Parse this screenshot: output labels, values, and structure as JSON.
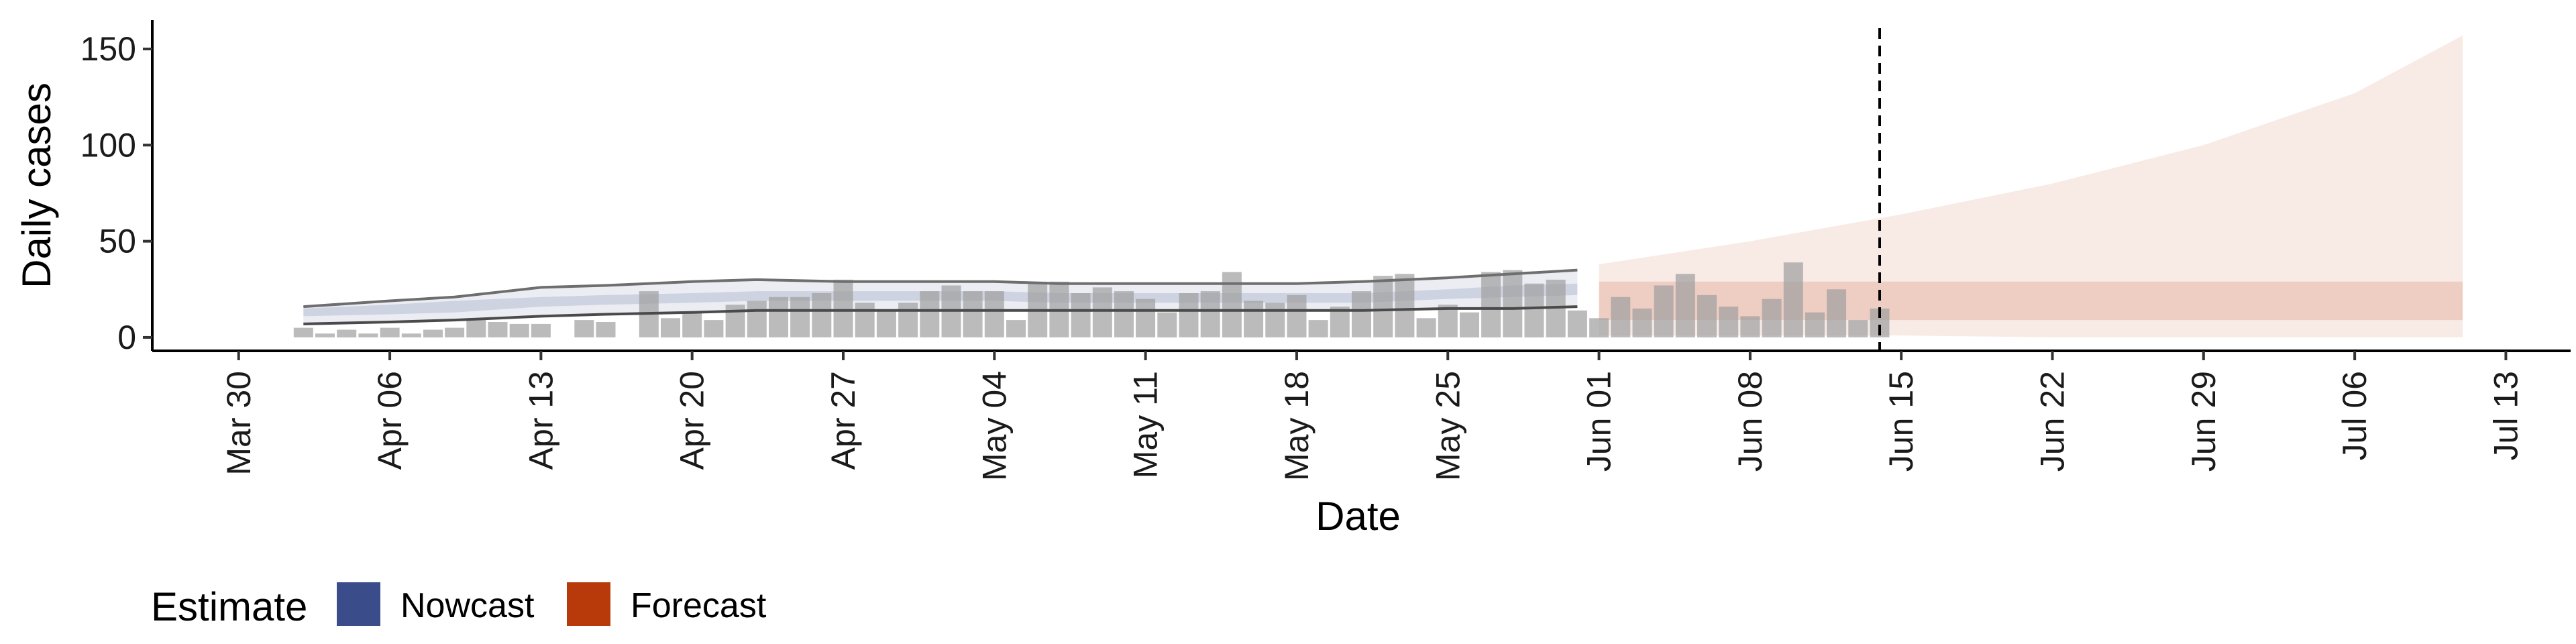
{
  "chart_data": {
    "type": "bar",
    "xlabel": "Date",
    "ylabel": "Daily cases",
    "ylim": [
      -7,
      165
    ],
    "xlim": [
      "2020-03-26",
      "2020-07-16"
    ],
    "y_ticks": [
      0,
      50,
      100,
      150
    ],
    "x_ticks": [
      "2020-03-30",
      "2020-04-06",
      "2020-04-13",
      "2020-04-20",
      "2020-04-27",
      "2020-05-04",
      "2020-05-11",
      "2020-05-18",
      "2020-05-25",
      "2020-06-01",
      "2020-06-08",
      "2020-06-15",
      "2020-06-22",
      "2020-06-29",
      "2020-07-06",
      "2020-07-13"
    ],
    "x_tick_labels": [
      "Mar 30",
      "Apr 06",
      "Apr 13",
      "Apr 20",
      "Apr 27",
      "May 04",
      "May 11",
      "May 18",
      "May 25",
      "Jun 01",
      "Jun 08",
      "Jun 15",
      "Jun 22",
      "Jun 29",
      "Jul 06",
      "Jul 13"
    ],
    "vline_date": "2020-06-14",
    "grid": false,
    "legend_position": "bottom",
    "legend": {
      "title": "Estimate",
      "items": [
        {
          "label": "Nowcast",
          "color": "#3A4D8A"
        },
        {
          "label": "Forecast",
          "color": "#B83A0B"
        }
      ]
    },
    "bars": {
      "dates": [
        "2020-04-02",
        "2020-04-03",
        "2020-04-04",
        "2020-04-05",
        "2020-04-06",
        "2020-04-07",
        "2020-04-08",
        "2020-04-09",
        "2020-04-10",
        "2020-04-11",
        "2020-04-12",
        "2020-04-13",
        "2020-04-14",
        "2020-04-15",
        "2020-04-16",
        "2020-04-17",
        "2020-04-18",
        "2020-04-19",
        "2020-04-20",
        "2020-04-21",
        "2020-04-22",
        "2020-04-23",
        "2020-04-24",
        "2020-04-25",
        "2020-04-26",
        "2020-04-27",
        "2020-04-28",
        "2020-04-29",
        "2020-04-30",
        "2020-05-01",
        "2020-05-02",
        "2020-05-03",
        "2020-05-04",
        "2020-05-05",
        "2020-05-06",
        "2020-05-07",
        "2020-05-08",
        "2020-05-09",
        "2020-05-10",
        "2020-05-11",
        "2020-05-12",
        "2020-05-13",
        "2020-05-14",
        "2020-05-15",
        "2020-05-16",
        "2020-05-17",
        "2020-05-18",
        "2020-05-19",
        "2020-05-20",
        "2020-05-21",
        "2020-05-22",
        "2020-05-23",
        "2020-05-24",
        "2020-05-25",
        "2020-05-26",
        "2020-05-27",
        "2020-05-28",
        "2020-05-29",
        "2020-05-30",
        "2020-05-31",
        "2020-06-01",
        "2020-06-02",
        "2020-06-03",
        "2020-06-04",
        "2020-06-05",
        "2020-06-06",
        "2020-06-07",
        "2020-06-08",
        "2020-06-09",
        "2020-06-10",
        "2020-06-11",
        "2020-06-12",
        "2020-06-13",
        "2020-06-14"
      ],
      "values": [
        5,
        2,
        4,
        2,
        5,
        2,
        4,
        5,
        10,
        8,
        7,
        7,
        0,
        9,
        8,
        0,
        24,
        10,
        13,
        9,
        17,
        19,
        21,
        21,
        23,
        30,
        18,
        14,
        18,
        24,
        27,
        24,
        24,
        9,
        29,
        29,
        23,
        26,
        24,
        20,
        13,
        23,
        24,
        34,
        19,
        18,
        22,
        9,
        16,
        24,
        32,
        33,
        10,
        17,
        13,
        34,
        35,
        28,
        30,
        14,
        10,
        21,
        15,
        27,
        33,
        22,
        16,
        11,
        20,
        39,
        13,
        25,
        9,
        15
      ]
    },
    "nowcast": {
      "dates": [
        "2020-04-02",
        "2020-04-06",
        "2020-04-09",
        "2020-04-13",
        "2020-04-16",
        "2020-04-20",
        "2020-04-23",
        "2020-04-27",
        "2020-04-30",
        "2020-05-04",
        "2020-05-07",
        "2020-05-11",
        "2020-05-14",
        "2020-05-18",
        "2020-05-21",
        "2020-05-25",
        "2020-05-28",
        "2020-05-31"
      ],
      "lower_90": [
        7,
        8,
        9,
        11,
        12,
        13,
        14,
        14,
        14,
        14,
        14,
        14,
        14,
        14,
        14,
        15,
        15,
        16
      ],
      "lower_50": [
        11,
        12,
        13,
        16,
        17,
        18,
        19,
        19,
        19,
        19,
        18,
        18,
        18,
        18,
        18,
        20,
        21,
        22
      ],
      "upper_50": [
        15,
        17,
        19,
        21,
        22,
        23,
        24,
        24,
        24,
        24,
        23,
        23,
        23,
        23,
        23,
        25,
        27,
        28
      ],
      "upper_90": [
        16,
        19,
        21,
        26,
        27,
        29,
        30,
        29,
        29,
        29,
        28,
        28,
        28,
        28,
        29,
        31,
        33,
        35
      ]
    },
    "forecast": {
      "dates": [
        "2020-06-01",
        "2020-06-08",
        "2020-06-15",
        "2020-06-22",
        "2020-06-29",
        "2020-07-06",
        "2020-07-11"
      ],
      "lower_90": [
        1,
        1,
        1,
        0,
        0,
        0,
        0
      ],
      "lower_50": [
        9,
        9,
        9,
        9,
        9,
        9,
        9
      ],
      "upper_50": [
        29,
        29,
        29,
        29,
        29,
        29,
        29
      ],
      "upper_90": [
        38,
        50,
        64,
        80,
        100,
        127,
        157
      ]
    }
  }
}
